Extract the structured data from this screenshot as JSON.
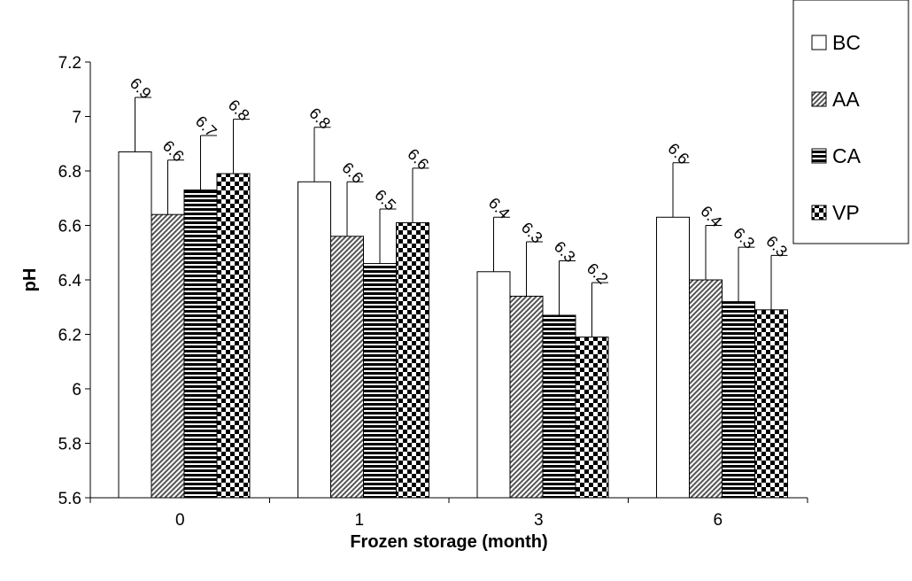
{
  "chart_data": {
    "type": "bar",
    "title": "",
    "xlabel": "Frozen storage (month)",
    "ylabel": "pH",
    "categories": [
      "0",
      "1",
      "3",
      "6"
    ],
    "ylim": [
      5.6,
      7.2
    ],
    "yticks": [
      "5.6",
      "5.8",
      "6",
      "6.2",
      "6.4",
      "6.6",
      "6.8",
      "7",
      "7.2"
    ],
    "grid": false,
    "legend_position": "top-right",
    "series": [
      {
        "name": "BC",
        "pattern": "solid-white",
        "values": [
          6.87,
          6.76,
          6.43,
          6.63
        ],
        "errors": [
          0.2,
          0.2,
          0.2,
          0.2
        ],
        "labels": [
          "6.9",
          "6.8",
          "6.4",
          "6.6"
        ]
      },
      {
        "name": "AA",
        "pattern": "diagonal-hatch",
        "values": [
          6.64,
          6.56,
          6.34,
          6.4
        ],
        "errors": [
          0.2,
          0.2,
          0.2,
          0.2
        ],
        "labels": [
          "6.6",
          "6.6",
          "6.3",
          "6.4"
        ]
      },
      {
        "name": "CA",
        "pattern": "horizontal-stripes",
        "values": [
          6.73,
          6.46,
          6.27,
          6.32
        ],
        "errors": [
          0.2,
          0.2,
          0.2,
          0.2
        ],
        "labels": [
          "6.7",
          "6.5",
          "6.3",
          "6.3"
        ]
      },
      {
        "name": "VP",
        "pattern": "checkerboard",
        "values": [
          6.79,
          6.61,
          6.19,
          6.29
        ],
        "errors": [
          0.2,
          0.2,
          0.2,
          0.2
        ],
        "labels": [
          "6.8",
          "6.6",
          "6.2",
          "6.3"
        ]
      }
    ]
  }
}
